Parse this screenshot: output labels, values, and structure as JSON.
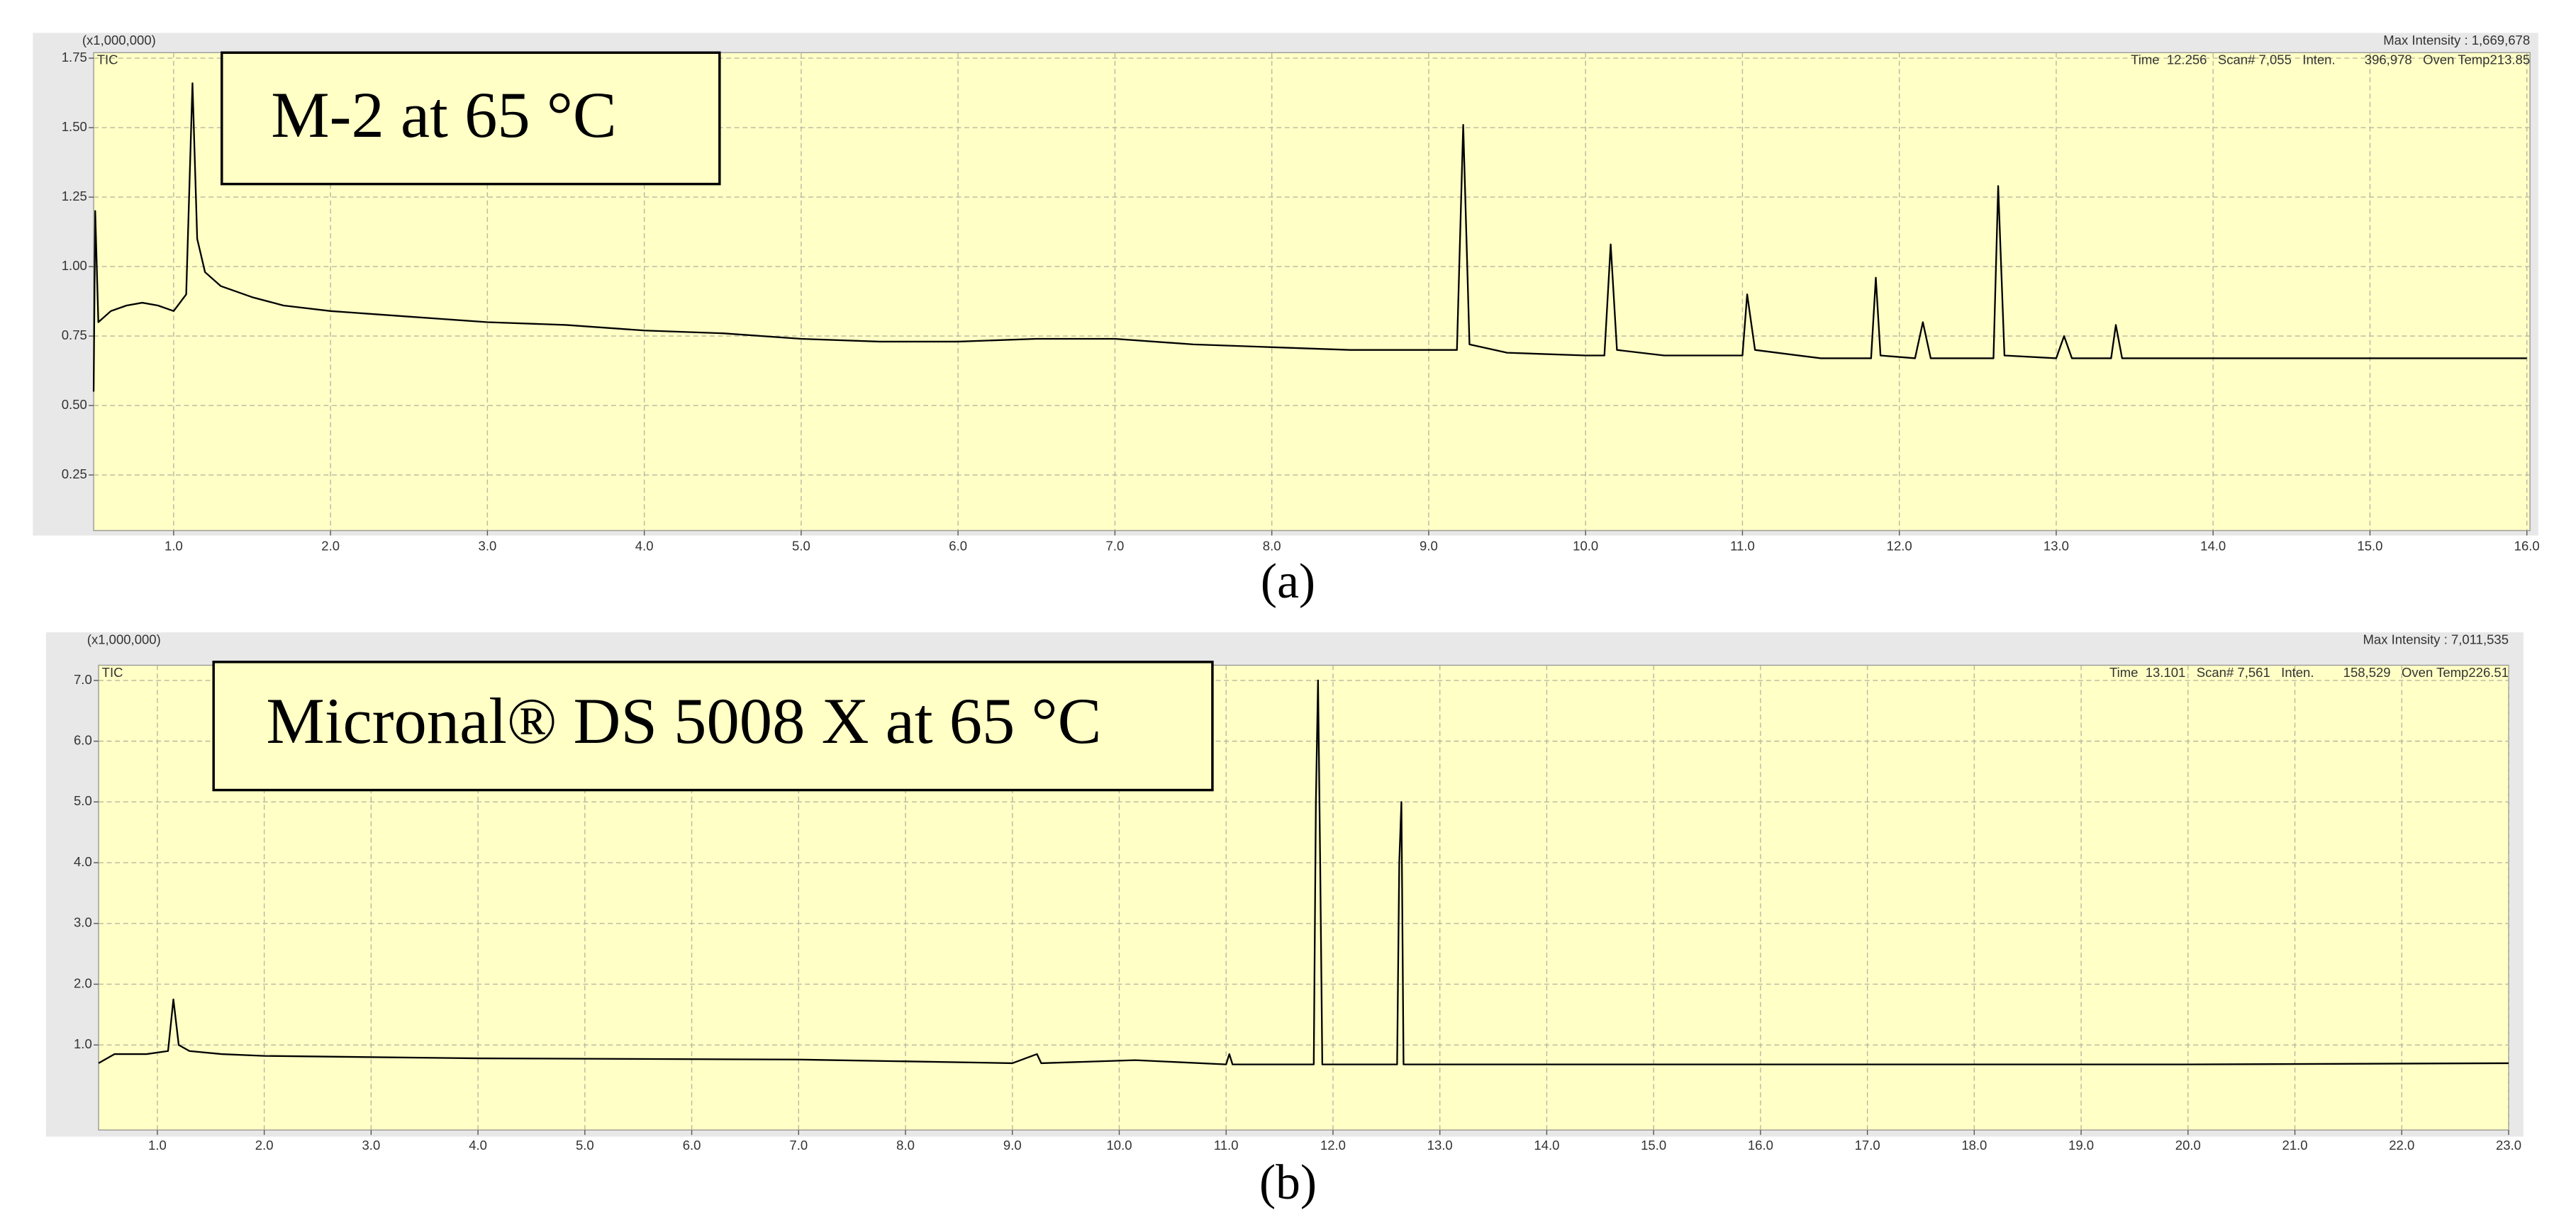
{
  "chart_data": [
    {
      "type": "line",
      "title": "M-2 at 65 °C",
      "caption": "(a)",
      "y_unit": "(x1,000,000)",
      "trace_label": "TIC",
      "max_intensity": "Max Intensity : 1,669,678",
      "status": "Time  12.256   Scan# 7,055   Inten.        396,978   Oven Temp213.85",
      "grid": true,
      "xlim": [
        0.49,
        16.02
      ],
      "ylim": [
        0.05,
        1.77
      ],
      "xticks": [
        {
          "value": 1,
          "label": "1.0"
        },
        {
          "value": 2,
          "label": "2.0"
        },
        {
          "value": 3,
          "label": "3.0"
        },
        {
          "value": 4,
          "label": "4.0"
        },
        {
          "value": 5,
          "label": "5.0"
        },
        {
          "value": 6,
          "label": "6.0"
        },
        {
          "value": 7,
          "label": "7.0"
        },
        {
          "value": 8,
          "label": "8.0"
        },
        {
          "value": 9,
          "label": "9.0"
        },
        {
          "value": 10,
          "label": "10.0"
        },
        {
          "value": 11,
          "label": "11.0"
        },
        {
          "value": 12,
          "label": "12.0"
        },
        {
          "value": 13,
          "label": "13.0"
        },
        {
          "value": 14,
          "label": "14.0"
        },
        {
          "value": 15,
          "label": "15.0"
        },
        {
          "value": 16,
          "label": "16.0"
        }
      ],
      "yticks": [
        0.25,
        {
          "value": 0.5,
          "label": "0.50"
        },
        0.75,
        {
          "value": 1,
          "label": "1.00"
        },
        1.25,
        {
          "value": 1.5,
          "label": "1.50"
        },
        1.75
      ],
      "series": [
        {
          "color": "#000000",
          "x": [
            0.49,
            0.5,
            0.52,
            0.6,
            0.7,
            0.8,
            0.9,
            1.0,
            1.08,
            1.12,
            1.15,
            1.2,
            1.3,
            1.5,
            1.7,
            2.0,
            2.5,
            3.0,
            3.5,
            4.0,
            4.5,
            5.0,
            5.5,
            6.0,
            6.5,
            7.0,
            7.5,
            8.0,
            8.5,
            9.0,
            9.18,
            9.22,
            9.26,
            9.5,
            10.0,
            10.12,
            10.16,
            10.2,
            10.5,
            11.0,
            11.03,
            11.08,
            11.5,
            11.82,
            11.85,
            11.88,
            12.1,
            12.15,
            12.2,
            12.6,
            12.63,
            12.67,
            13.0,
            13.05,
            13.1,
            13.35,
            13.38,
            13.42,
            14.0,
            15.0,
            16.0
          ],
          "values": [
            0.55,
            1.2,
            0.8,
            0.84,
            0.86,
            0.87,
            0.86,
            0.84,
            0.9,
            1.66,
            1.1,
            0.98,
            0.93,
            0.89,
            0.86,
            0.84,
            0.82,
            0.8,
            0.79,
            0.77,
            0.76,
            0.74,
            0.73,
            0.73,
            0.74,
            0.74,
            0.72,
            0.71,
            0.7,
            0.7,
            0.7,
            1.51,
            0.72,
            0.69,
            0.68,
            0.68,
            1.08,
            0.7,
            0.68,
            0.68,
            0.9,
            0.7,
            0.67,
            0.67,
            0.96,
            0.68,
            0.67,
            0.8,
            0.67,
            0.67,
            1.29,
            0.68,
            0.67,
            0.75,
            0.67,
            0.67,
            0.79,
            0.67,
            0.67,
            0.67,
            0.67
          ]
        }
      ]
    },
    {
      "type": "line",
      "title": "Micronal® DS 5008 X at 65 °C",
      "caption": "(b)",
      "y_unit": "(x1,000,000)",
      "trace_label": "TIC",
      "max_intensity": "Max Intensity : 7,011,535",
      "status": "Time  13.101   Scan# 7,561   Inten.        158,529   Oven Temp226.51",
      "grid": true,
      "xlim": [
        0.45,
        23.0
      ],
      "ylim": [
        -0.4,
        7.25
      ],
      "xticks": [
        {
          "value": 1,
          "label": "1.0"
        },
        {
          "value": 2,
          "label": "2.0"
        },
        {
          "value": 3,
          "label": "3.0"
        },
        {
          "value": 4,
          "label": "4.0"
        },
        {
          "value": 5,
          "label": "5.0"
        },
        {
          "value": 6,
          "label": "6.0"
        },
        {
          "value": 7,
          "label": "7.0"
        },
        {
          "value": 8,
          "label": "8.0"
        },
        {
          "value": 9,
          "label": "9.0"
        },
        {
          "value": 10,
          "label": "10.0"
        },
        {
          "value": 11,
          "label": "11.0"
        },
        {
          "value": 12,
          "label": "12.0"
        },
        {
          "value": 13,
          "label": "13.0"
        },
        {
          "value": 14,
          "label": "14.0"
        },
        {
          "value": 15,
          "label": "15.0"
        },
        {
          "value": 16,
          "label": "16.0"
        },
        {
          "value": 17,
          "label": "17.0"
        },
        {
          "value": 18,
          "label": "18.0"
        },
        {
          "value": 19,
          "label": "19.0"
        },
        {
          "value": 20,
          "label": "20.0"
        },
        {
          "value": 21,
          "label": "21.0"
        },
        {
          "value": 22,
          "label": "22.0"
        },
        {
          "value": 23,
          "label": "23.0"
        }
      ],
      "yticks": [
        {
          "value": 1,
          "label": "1.0"
        },
        {
          "value": 2,
          "label": "2.0"
        },
        {
          "value": 3,
          "label": "3.0"
        },
        {
          "value": 4,
          "label": "4.0"
        },
        {
          "value": 5,
          "label": "5.0"
        },
        {
          "value": 6,
          "label": "6.0"
        },
        {
          "value": 7,
          "label": "7.0"
        }
      ],
      "series": [
        {
          "color": "#000000",
          "x": [
            0.45,
            0.6,
            0.9,
            1.1,
            1.15,
            1.2,
            1.3,
            1.6,
            2.0,
            4.0,
            7.0,
            9.0,
            9.23,
            9.27,
            10.15,
            11.0,
            11.03,
            11.06,
            11.82,
            11.84,
            11.86,
            11.88,
            11.9,
            12.6,
            12.62,
            12.64,
            12.66,
            13.0,
            15.0,
            20.0,
            23.0
          ],
          "values": [
            0.7,
            0.85,
            0.85,
            0.9,
            1.75,
            1.0,
            0.9,
            0.85,
            0.82,
            0.78,
            0.76,
            0.7,
            0.85,
            0.7,
            0.75,
            0.68,
            0.85,
            0.68,
            0.68,
            5.0,
            7.0,
            4.0,
            0.68,
            0.68,
            4.0,
            5.0,
            0.68,
            0.68,
            0.68,
            0.68,
            0.7
          ]
        }
      ]
    }
  ]
}
